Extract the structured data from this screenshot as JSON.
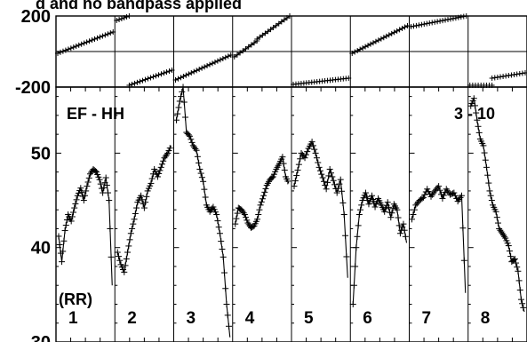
{
  "chart_data": {
    "type": "line",
    "title": "d and no bandpass applied",
    "n_panels": 8,
    "panel_labels": [
      "1",
      "2",
      "3",
      "4",
      "5",
      "6",
      "7",
      "8"
    ],
    "top_strip": {
      "ylim": [
        -200,
        200
      ],
      "yticks": [
        "200",
        "-200"
      ],
      "phase_segments": [
        {
          "panel": 1,
          "start": -10,
          "end": 110
        },
        {
          "panel": 2,
          "start": 175,
          "end": 200
        },
        {
          "panel": 2,
          "start": -190,
          "end": -105
        },
        {
          "panel": 3,
          "start": -160,
          "end": -20
        },
        {
          "panel": 4,
          "start": -30,
          "end": 60
        },
        {
          "panel": 4,
          "start": 70,
          "end": 200
        },
        {
          "panel": 5,
          "start": -185,
          "end": -150
        },
        {
          "panel": 6,
          "start": -10,
          "end": 145
        },
        {
          "panel": 7,
          "start": 140,
          "end": 200
        },
        {
          "panel": 8,
          "start": -190,
          "end": -190
        },
        {
          "panel": 8,
          "start": -150,
          "end": -120
        }
      ]
    },
    "main": {
      "ylim": [
        30,
        57
      ],
      "yticks": [
        "30",
        "40",
        "50"
      ],
      "label": "EF - HH",
      "corr_label": "(RR)",
      "right_label": "3 - 10",
      "series": [
        {
          "panel": 1,
          "values": [
            41.2,
            38.5,
            41.8,
            43.5,
            42.8,
            44.2,
            45.5,
            46.3,
            45.0,
            46.5,
            47.8,
            48.3,
            48.0,
            47.2,
            45.8,
            47.4,
            45.0,
            36.0
          ]
        },
        {
          "panel": 2,
          "values": [
            39.5,
            38.2,
            37.4,
            39.5,
            41.5,
            43.0,
            44.8,
            45.5,
            44.2,
            46.0,
            46.8,
            48.3,
            47.5,
            48.5,
            49.5,
            50.0,
            50.8
          ]
        },
        {
          "panel": 3,
          "values": [
            53.5,
            55.5,
            57.0,
            52.2,
            51.8,
            50.8,
            50.3,
            48.3,
            47.0,
            44.5,
            43.8,
            44.3,
            43.5,
            41.5,
            39.0,
            34.0,
            30.5
          ]
        },
        {
          "panel": 4,
          "values": [
            42.5,
            44.2,
            44.0,
            43.5,
            42.6,
            42.1,
            42.3,
            43.0,
            44.5,
            45.5,
            46.6,
            47.2,
            47.5,
            48.3,
            48.9,
            49.6,
            47.5,
            46.8
          ]
        },
        {
          "panel": 5,
          "values": [
            46.5,
            48.2,
            50.0,
            49.5,
            50.5,
            51.2,
            50.0,
            48.5,
            47.4,
            46.2,
            48.3,
            47.1,
            45.8,
            47.2,
            43.5,
            36.8
          ]
        },
        {
          "panel": 6,
          "values": [
            34.0,
            40.0,
            43.5,
            45.0,
            45.8,
            44.6,
            45.5,
            44.3,
            45.2,
            44.5,
            43.8,
            44.8,
            43.2,
            44.6,
            44.0,
            41.5,
            42.5,
            40.5
          ]
        },
        {
          "panel": 7,
          "values": [
            43.0,
            44.5,
            45.0,
            45.3,
            46.2,
            45.4,
            46.0,
            46.5,
            45.2,
            46.2,
            45.6,
            45.8,
            44.9,
            45.5,
            35.2
          ]
        },
        {
          "panel": 8,
          "values": [
            55.0,
            55.8,
            53.5,
            51.5,
            50.8,
            48.5,
            46.0,
            44.5,
            43.8,
            42.0,
            41.5,
            41.0,
            40.2,
            38.5,
            38.8,
            37.5,
            34.5,
            33.2
          ]
        }
      ]
    }
  }
}
